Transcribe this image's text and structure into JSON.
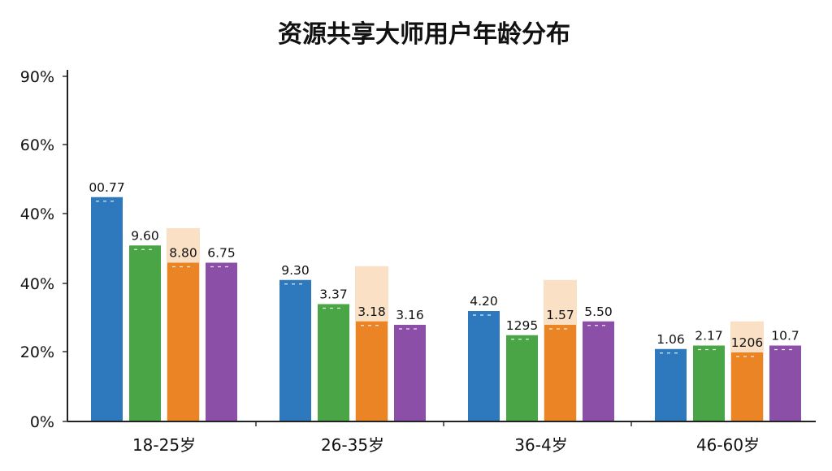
{
  "chart_data": {
    "type": "bar",
    "title": "资源共享大师用户年龄分布",
    "xlabel": "",
    "ylabel": "",
    "ytick_labels": [
      "0%",
      "20%",
      "40%",
      "40%",
      "60%",
      "90%"
    ],
    "ylim": [
      0,
      100
    ],
    "grid": false,
    "legend": "none",
    "categories": [
      "18-25岁",
      "26-35岁",
      "36-4岁",
      "46-60岁"
    ],
    "series": [
      {
        "color": "#2e78be",
        "values": [
          65,
          41,
          32,
          21
        ],
        "labels": [
          "00.77",
          "9.30",
          "4.20",
          "1.06"
        ]
      },
      {
        "color": "#4aa546",
        "values": [
          51,
          34,
          25,
          22
        ],
        "labels": [
          "9.60",
          "3.37",
          "1295",
          "2.17"
        ]
      },
      {
        "color": "#f2a55a",
        "values": [
          56,
          45,
          41,
          29
        ],
        "labels": [
          "",
          "",
          "",
          ""
        ],
        "faded": true
      },
      {
        "color": "#ea8425",
        "values": [
          46,
          29,
          28,
          20
        ],
        "labels": [
          "8.80",
          "3.18",
          "1.57",
          "1206"
        ]
      },
      {
        "color": "#8c4fa8",
        "values": [
          46,
          28,
          29,
          22
        ],
        "labels": [
          "6.75",
          "3.16",
          "5.50",
          "10.7"
        ]
      }
    ]
  }
}
